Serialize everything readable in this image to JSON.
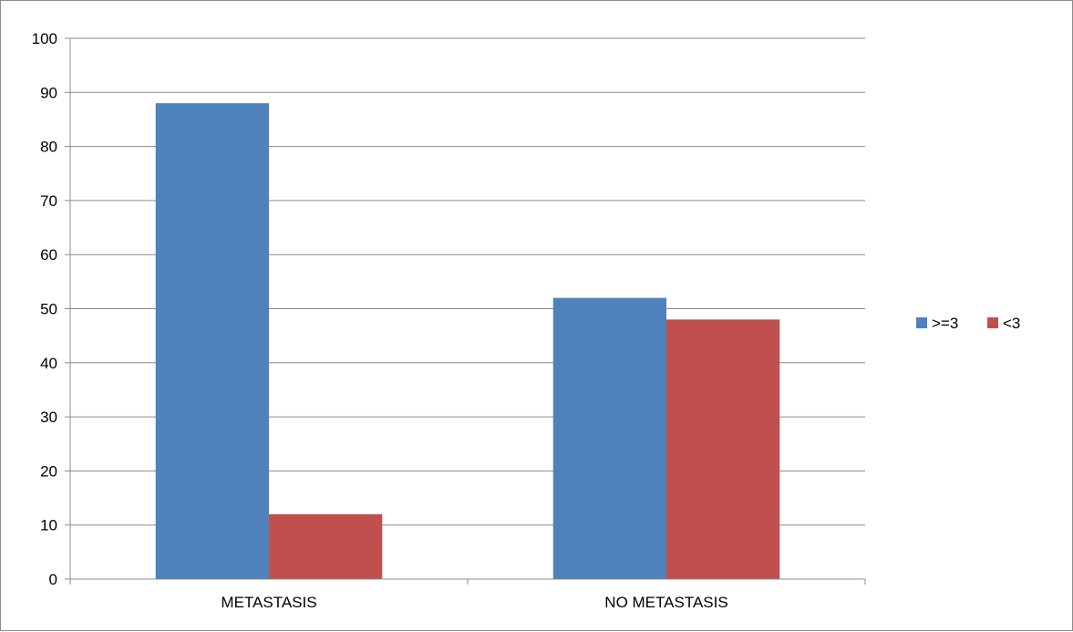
{
  "chart_data": {
    "type": "bar",
    "categories": [
      "METASTASIS",
      "NO METASTASIS"
    ],
    "series": [
      {
        "name": ">=3",
        "values": [
          88,
          52
        ],
        "color": "#4f81bd"
      },
      {
        "name": "<3",
        "values": [
          12,
          48
        ],
        "color": "#c0504d"
      }
    ],
    "ylim": [
      0,
      100
    ],
    "yticks": [
      0,
      10,
      20,
      30,
      40,
      50,
      60,
      70,
      80,
      90,
      100
    ],
    "grid": true,
    "legend_position": "right"
  }
}
